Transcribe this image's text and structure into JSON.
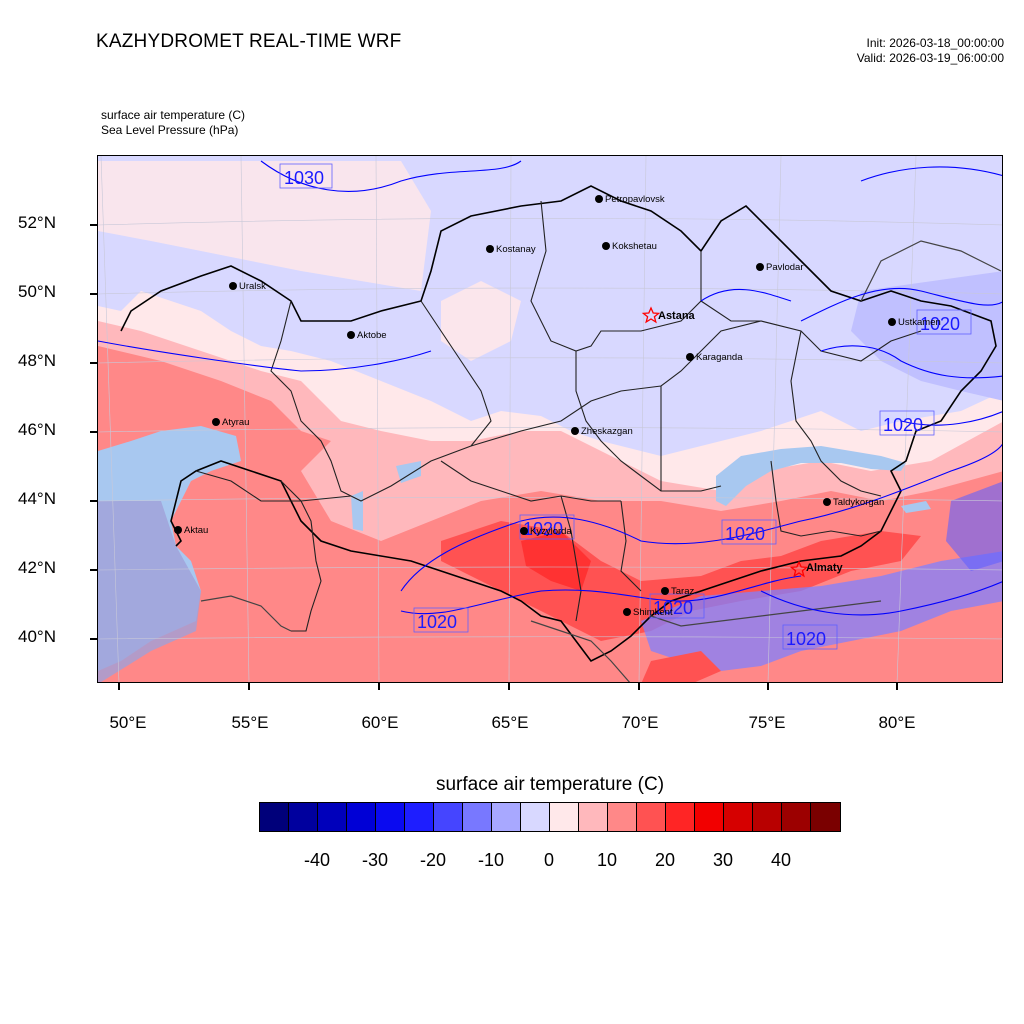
{
  "header": {
    "title": "KAZHYDROMET REAL-TIME WRF",
    "init": "Init: 2026-03-18_00:00:00",
    "valid": "Valid: 2026-03-19_06:00:00",
    "field1": "surface air temperature   (C)",
    "field2": "Sea Level Pressure   (hPa)"
  },
  "axes": {
    "lat_labels": [
      "52°N",
      "50°N",
      "48°N",
      "46°N",
      "44°N",
      "42°N",
      "40°N"
    ],
    "lon_labels": [
      "50°E",
      "55°E",
      "60°E",
      "65°E",
      "70°E",
      "75°E",
      "80°E"
    ]
  },
  "cities": [
    {
      "name": "Uralsk",
      "capital": false
    },
    {
      "name": "Aktobe",
      "capital": false
    },
    {
      "name": "Kostanay",
      "capital": false
    },
    {
      "name": "Petropavlovsk",
      "capital": false
    },
    {
      "name": "Kokshetau",
      "capital": false
    },
    {
      "name": "Pavlodar",
      "capital": false
    },
    {
      "name": "Astana",
      "capital": true
    },
    {
      "name": "Ustkamen",
      "capital": false
    },
    {
      "name": "Karaganda",
      "capital": false
    },
    {
      "name": "Atyrau",
      "capital": false
    },
    {
      "name": "Zheskazgan",
      "capital": false
    },
    {
      "name": "Aktau",
      "capital": false
    },
    {
      "name": "Kyzylorda",
      "capital": false
    },
    {
      "name": "Taldykorgan",
      "capital": false
    },
    {
      "name": "Taraz",
      "capital": false
    },
    {
      "name": "Shimkent",
      "capital": false
    },
    {
      "name": "Almaty",
      "capital": true
    }
  ],
  "isobars": [
    {
      "label": "1030"
    },
    {
      "label": "1020"
    },
    {
      "label": "1020"
    },
    {
      "label": "1020"
    },
    {
      "label": "1020"
    },
    {
      "label": "1020"
    },
    {
      "label": "1020"
    },
    {
      "label": "1020"
    }
  ],
  "colorbar": {
    "title": "surface air temperature  (C)",
    "colors": [
      "#00007a",
      "#00009e",
      "#0000bb",
      "#0000d6",
      "#0a0af0",
      "#1e1eff",
      "#4545ff",
      "#7878ff",
      "#a8a8ff",
      "#d8d8ff",
      "#ffe8ea",
      "#ffb8bc",
      "#ff8888",
      "#ff5252",
      "#ff2525",
      "#f20000",
      "#d60000",
      "#b80000",
      "#9c0000",
      "#7a0000"
    ],
    "labels": [
      "-40",
      "-30",
      "-20",
      "-10",
      "0",
      "10",
      "20",
      "30",
      "40"
    ]
  },
  "legend_colors": {
    "water": "#a8c8f0",
    "isobar": "#0000ff",
    "capital_marker": "#ff0000"
  }
}
